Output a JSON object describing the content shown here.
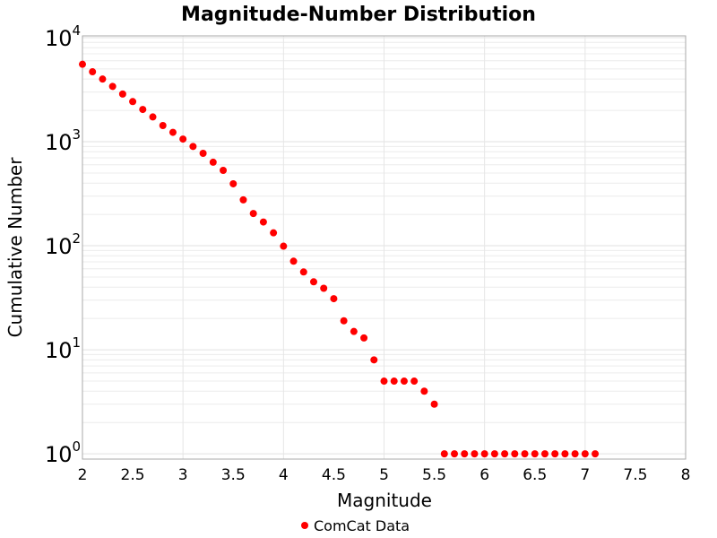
{
  "chart_data": {
    "type": "scatter",
    "title": "Magnitude-Number Distribution",
    "xlabel": "Magnitude",
    "ylabel": "Cumulative Number",
    "xlim": [
      2,
      8
    ],
    "ylim": [
      0.89,
      10400
    ],
    "yscale": "log",
    "grid": true,
    "legend_placement": "bottom",
    "x_ticks": [
      "2",
      "2.5",
      "3",
      "3.5",
      "4",
      "4.5",
      "5",
      "5.5",
      "6",
      "6.5",
      "7",
      "7.5",
      "8"
    ],
    "y_ticks": [
      {
        "base": "10",
        "exp": "0"
      },
      {
        "base": "10",
        "exp": "1"
      },
      {
        "base": "10",
        "exp": "2"
      },
      {
        "base": "10",
        "exp": "3"
      },
      {
        "base": "10",
        "exp": "4"
      }
    ],
    "series": [
      {
        "name": "ComCat Data",
        "color": "#ff0000",
        "x": [
          2.0,
          2.1,
          2.2,
          2.3,
          2.4,
          2.5,
          2.6,
          2.7,
          2.8,
          2.9,
          3.0,
          3.1,
          3.2,
          3.3,
          3.4,
          3.5,
          3.6,
          3.7,
          3.8,
          3.9,
          4.0,
          4.1,
          4.2,
          4.3,
          4.4,
          4.5,
          4.6,
          4.7,
          4.8,
          4.9,
          5.0,
          5.1,
          5.2,
          5.3,
          5.4,
          5.5,
          5.6,
          5.7,
          5.8,
          5.9,
          6.0,
          6.1,
          6.2,
          6.3,
          6.4,
          6.5,
          6.6,
          6.7,
          6.8,
          6.9,
          7.0,
          7.1
        ],
        "y": [
          5550,
          4700,
          4000,
          3400,
          2870,
          2430,
          2040,
          1730,
          1430,
          1230,
          1060,
          900,
          773,
          635,
          530,
          394,
          276,
          204,
          169,
          133,
          99,
          71,
          56,
          45,
          39,
          31,
          19,
          15,
          13,
          8,
          5,
          5,
          5,
          5,
          4,
          3,
          1,
          1,
          1,
          1,
          1,
          1,
          1,
          1,
          1,
          1,
          1,
          1,
          1,
          1,
          1,
          1
        ]
      }
    ]
  }
}
